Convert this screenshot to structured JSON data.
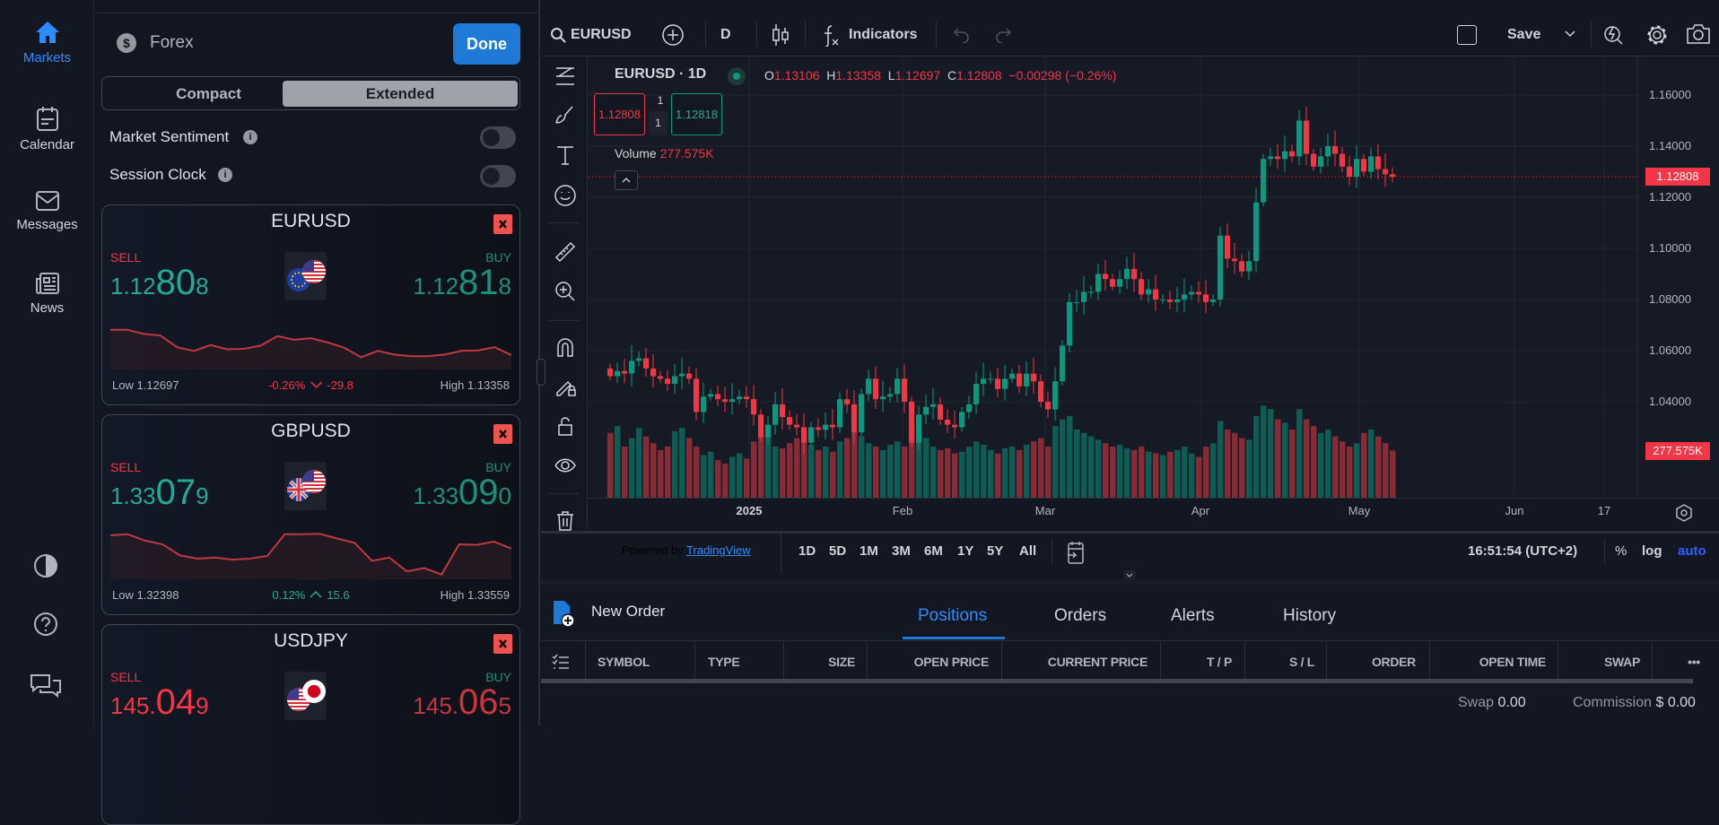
{
  "nav": {
    "items": [
      {
        "label": "Markets",
        "icon": "home-icon",
        "active": true
      },
      {
        "label": "Calendar",
        "icon": "calendar-icon"
      },
      {
        "label": "Messages",
        "icon": "mail-icon"
      },
      {
        "label": "News",
        "icon": "news-icon"
      }
    ],
    "bottom_icons": [
      "contrast-icon",
      "help-icon",
      "chat-icon"
    ]
  },
  "panel": {
    "category": "Forex",
    "done_label": "Done",
    "view_modes": [
      "Compact",
      "Extended"
    ],
    "selected_mode": "Extended",
    "toggles": [
      {
        "label": "Market Sentiment",
        "on": false
      },
      {
        "label": "Session Clock",
        "on": false
      }
    ],
    "cards": [
      {
        "symbol": "EURUSD",
        "sell_label": "SELL",
        "buy_label": "BUY",
        "sell": [
          "1.12",
          "80",
          "8"
        ],
        "buy": [
          "1.12",
          "81",
          "8"
        ],
        "sell_color": "#22ab94",
        "buy_color": "#1e8f7c",
        "low": "Low 1.12697",
        "high": "High 1.13358",
        "change": "-0.26%",
        "change_pips": "-29.8",
        "direction": "down",
        "change_color": "#f23645",
        "flags": [
          "eu",
          "us"
        ],
        "spark": [
          70,
          70,
          62,
          59,
          37,
          30,
          41,
          33,
          34,
          40,
          58,
          51,
          54,
          46,
          36,
          18,
          30,
          23,
          20,
          20,
          23,
          30,
          31,
          37,
          22
        ]
      },
      {
        "symbol": "GBPUSD",
        "sell_label": "SELL",
        "buy_label": "BUY",
        "sell": [
          "1.33",
          "07",
          "9"
        ],
        "buy": [
          "1.33",
          "09",
          "0"
        ],
        "sell_color": "#22ab94",
        "buy_color": "#1e8f7c",
        "low": "Low 1.32398",
        "high": "High 1.33559",
        "change": "0.12%",
        "change_pips": "15.6",
        "direction": "up",
        "change_color": "#22ab94",
        "flags": [
          "gb",
          "us"
        ],
        "spark": [
          78,
          80,
          68,
          61,
          40,
          34,
          36,
          32,
          34,
          39,
          80,
          80,
          81,
          72,
          64,
          30,
          36,
          10,
          16,
          4,
          61,
          60,
          66,
          53
        ]
      },
      {
        "symbol": "USDJPY",
        "sell_label": "SELL",
        "buy_label": "BUY",
        "sell": [
          "145.",
          "04",
          "9"
        ],
        "buy": [
          "145.",
          "06",
          "5"
        ],
        "sell_color": "#f23645",
        "buy_color": "#c7363f",
        "flags": [
          "us",
          "jp"
        ]
      }
    ]
  },
  "toolbar": {
    "symbol": "EURUSD",
    "interval": "D",
    "indicators_label": "Indicators",
    "save_label": "Save"
  },
  "legend": {
    "title": "EURUSD · 1D",
    "o_label": "O",
    "o": "1.13106",
    "h_label": "H",
    "h": "1.13358",
    "l_label": "L",
    "l": "1.12697",
    "c_label": "C",
    "c": "1.12808",
    "change": "−0.00298 (−0.26%)",
    "sell_price": "1.12808",
    "buy_price": "1.12818",
    "qty_top": "1",
    "qty": "1",
    "volume_label": "Volume",
    "volume_value": "277.575K"
  },
  "chart_data": {
    "type": "candlestick",
    "symbol": "EURUSD",
    "interval": "1D",
    "y_ticks": [
      "1.16000",
      "1.14000",
      "1.12000",
      "1.10000",
      "1.08000",
      "1.06000",
      "1.04000"
    ],
    "ylim": [
      1.03,
      1.16
    ],
    "x_ticks": [
      "2025",
      "Feb",
      "Mar",
      "Apr",
      "May",
      "Jun",
      "17"
    ],
    "last_price": "1.12808",
    "last_volume": "277.575K",
    "grid": true,
    "close": [
      1.05,
      1.052,
      1.051,
      1.056,
      1.057,
      1.053,
      1.05,
      1.049,
      1.047,
      1.05,
      1.051,
      1.049,
      1.036,
      1.042,
      1.043,
      1.041,
      1.04,
      1.041,
      1.042,
      1.041,
      1.035,
      1.026,
      1.031,
      1.039,
      1.034,
      1.031,
      1.03,
      1.024,
      1.03,
      1.029,
      1.031,
      1.03,
      1.041,
      1.039,
      1.028,
      1.043,
      1.049,
      1.041,
      1.042,
      1.043,
      1.049,
      1.04,
      1.024,
      1.035,
      1.038,
      1.039,
      1.033,
      1.031,
      1.03,
      1.036,
      1.039,
      1.047,
      1.049,
      1.049,
      1.045,
      1.049,
      1.051,
      1.046,
      1.051,
      1.048,
      1.04,
      1.037,
      1.048,
      1.062,
      1.079,
      1.079,
      1.083,
      1.083,
      1.09,
      1.088,
      1.085,
      1.088,
      1.092,
      1.088,
      1.082,
      1.084,
      1.08,
      1.08,
      1.079,
      1.08,
      1.082,
      1.083,
      1.082,
      1.079,
      1.08,
      1.105,
      1.096,
      1.095,
      1.091,
      1.095,
      1.118,
      1.135,
      1.136,
      1.135,
      1.138,
      1.136,
      1.15,
      1.137,
      1.132,
      1.136,
      1.14,
      1.137,
      1.132,
      1.128,
      1.135,
      1.13,
      1.136,
      1.131,
      1.129,
      1.128
    ],
    "volume_k": [
      380,
      420,
      300,
      350,
      410,
      360,
      320,
      280,
      300,
      390,
      410,
      350,
      300,
      250,
      270,
      220,
      200,
      240,
      260,
      230,
      330,
      380,
      360,
      300,
      290,
      320,
      350,
      380,
      310,
      280,
      300,
      270,
      330,
      350,
      400,
      360,
      320,
      300,
      280,
      310,
      330,
      300,
      420,
      380,
      350,
      300,
      280,
      290,
      260,
      270,
      300,
      330,
      310,
      280,
      260,
      290,
      300,
      280,
      310,
      330,
      350,
      300,
      420,
      460,
      480,
      400,
      380,
      360,
      340,
      320,
      300,
      310,
      290,
      280,
      300,
      270,
      260,
      250,
      270,
      280,
      300,
      260,
      240,
      300,
      320,
      450,
      400,
      380,
      350,
      340,
      480,
      540,
      520,
      460,
      440,
      400,
      520,
      460,
      420,
      380,
      400,
      360,
      330,
      300,
      320,
      380,
      400,
      360,
      320,
      277.575
    ]
  },
  "timebar": {
    "powered_by": "Powered by",
    "tradingview": "TradingView",
    "periods": [
      "1D",
      "5D",
      "1M",
      "3M",
      "6M",
      "1Y",
      "5Y",
      "All"
    ],
    "time": "16:51:54 (UTC+2)",
    "percent": "%",
    "log": "log",
    "auto": "auto"
  },
  "bottom": {
    "new_order": "New Order",
    "tabs": [
      "Positions",
      "Orders",
      "Alerts",
      "History"
    ],
    "active_tab": "Positions",
    "columns": [
      "SYMBOL",
      "TYPE",
      "SIZE",
      "OPEN PRICE",
      "CURRENT PRICE",
      "T / P",
      "S / L",
      "ORDER",
      "OPEN TIME",
      "SWAP"
    ],
    "more": "•••",
    "swap_label": "Swap",
    "swap": "0.00",
    "commission_label": "Commission",
    "commission": "$ 0.00"
  },
  "colors": {
    "accent": "#2962ff",
    "green": "#089981",
    "red": "#f23645",
    "done": "#1e7ad6"
  }
}
